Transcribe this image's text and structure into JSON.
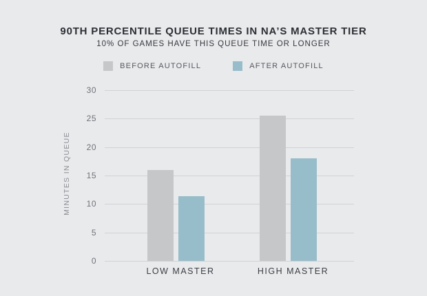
{
  "title": "90TH PERCENTILE QUEUE TIMES IN NA’S MASTER TIER",
  "subtitle": "10% OF GAMES HAVE THIS QUEUE TIME OR LONGER",
  "legend": {
    "items": [
      {
        "label": "BEFORE AUTOFILL",
        "color": "#c6c7c9"
      },
      {
        "label": "AFTER AUTOFILL",
        "color": "#98bdca"
      }
    ]
  },
  "chart_data": {
    "type": "bar",
    "title": "90TH PERCENTILE QUEUE TIMES IN NA’S MASTER TIER",
    "subtitle": "10% OF GAMES HAVE THIS QUEUE TIME OR LONGER",
    "categories": [
      "LOW MASTER",
      "HIGH MASTER"
    ],
    "series": [
      {
        "name": "BEFORE AUTOFILL",
        "color": "#c6c7c9",
        "values": [
          16,
          25.5
        ]
      },
      {
        "name": "AFTER AUTOFILL",
        "color": "#98bdca",
        "values": [
          11.4,
          18
        ]
      }
    ],
    "xlabel": "",
    "ylabel": "MINUTES IN QUEUE",
    "yticks": [
      0,
      5,
      10,
      15,
      20,
      25,
      30
    ],
    "ylim": [
      0,
      30
    ],
    "grid": true,
    "legend_position": "top"
  },
  "colors": {
    "background": "#e9eaec",
    "grid": "#cfd2d5",
    "title_text": "#2b2e33",
    "subtitle_text": "#35383d",
    "tick_text": "#6e7175",
    "axis_label_text": "#8a8d91",
    "category_text": "#3b3e43",
    "before_bar": "#c6c7c9",
    "after_bar": "#98bdca"
  }
}
